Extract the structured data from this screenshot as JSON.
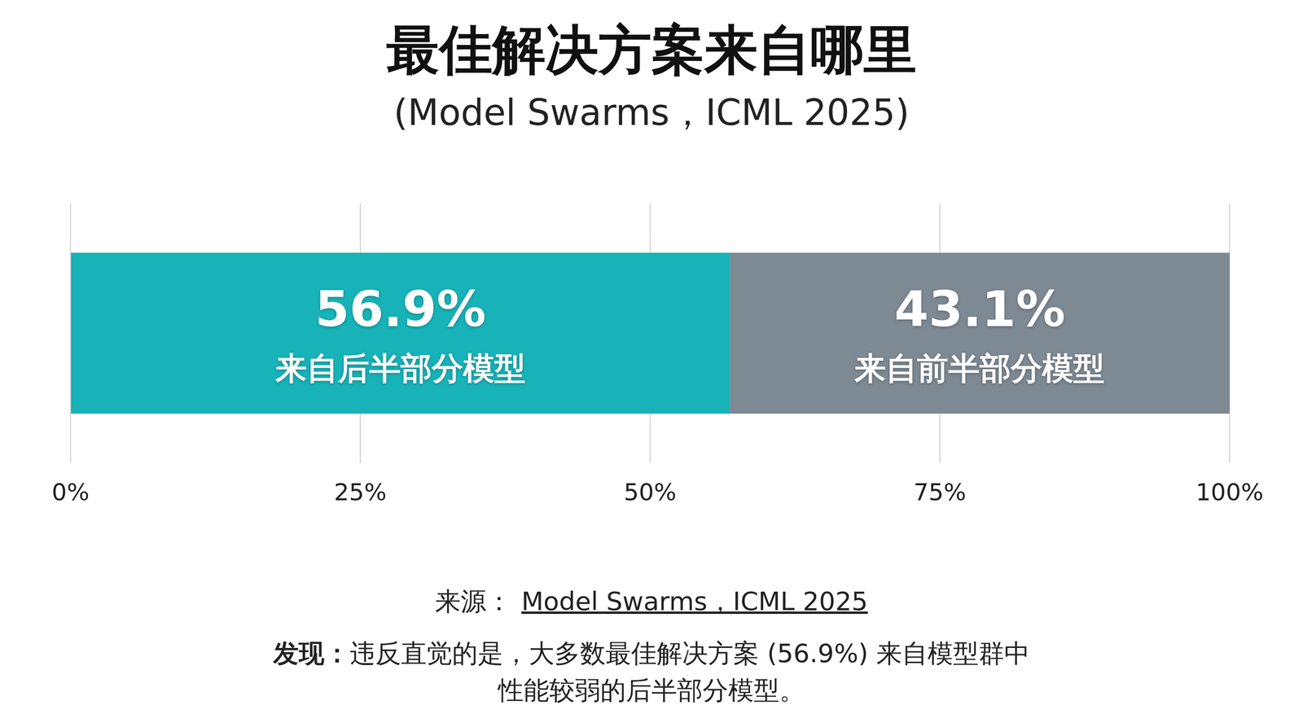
{
  "chart_data": {
    "type": "bar",
    "title": "最佳解决方案来自哪里",
    "subtitle": "(Model Swarms，ICML 2025)",
    "orientation": "horizontal",
    "stacked": true,
    "data_labels": true,
    "grid": true,
    "tick_labels": "x",
    "categories": [
      null
    ],
    "series": [
      {
        "name": "来自后半部分模型",
        "color": "#17b3b8",
        "values": [
          56.9
        ],
        "value_labels": [
          "56.9%"
        ]
      },
      {
        "name": "来自前半部分模型",
        "color": "#7d8993",
        "values": [
          43.1
        ],
        "value_labels": [
          "43.1%"
        ]
      }
    ],
    "xlim": [
      0,
      100
    ],
    "xticks": [
      {
        "value": 0,
        "label": "0%"
      },
      {
        "value": 25,
        "label": "25%"
      },
      {
        "value": 50,
        "label": "50%"
      },
      {
        "value": 75,
        "label": "75%"
      },
      {
        "value": 100,
        "label": "100%"
      }
    ],
    "source_label": "来源：",
    "source": "Model Swarms，ICML 2025",
    "finding_label": "发现：",
    "finding": "违反直觉的是，大多数最佳解决方案 (56.9%) 来自模型群中性能较弱的后半部分模型。"
  }
}
